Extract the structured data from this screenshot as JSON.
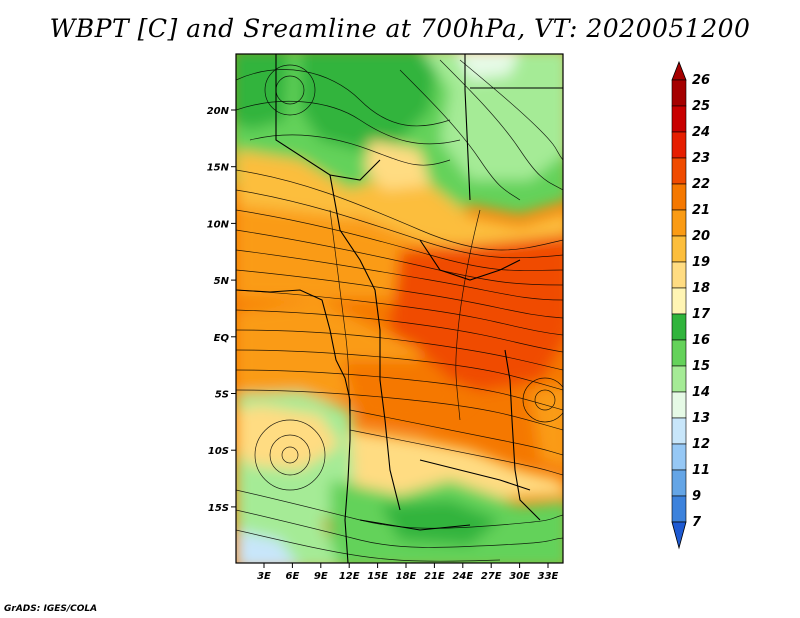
{
  "title": "WBPT [C] and Sreamline at 700hPa, VT: 2020051200",
  "credit": "GrADS: IGES/COLA",
  "x_ticks": [
    "3E",
    "6E",
    "9E",
    "12E",
    "15E",
    "18E",
    "21E",
    "24E",
    "27E",
    "30E",
    "33E"
  ],
  "y_ticks": [
    "20N",
    "15N",
    "10N",
    "5N",
    "EQ",
    "5S",
    "10S",
    "15S"
  ],
  "colorbar": {
    "labels": [
      "26",
      "25",
      "24",
      "23",
      "22",
      "21",
      "20",
      "19",
      "18",
      "17",
      "16",
      "15",
      "14",
      "13",
      "12",
      "11",
      "9",
      "7"
    ],
    "colors": [
      "#a50000",
      "#c80000",
      "#e61e00",
      "#f04b00",
      "#f57800",
      "#fa9b14",
      "#fcbe3c",
      "#ffdc82",
      "#fff5b4",
      "#30b43c",
      "#64d25a",
      "#a5eb96",
      "#e6fae6",
      "#c8e6fa",
      "#96c8f5",
      "#64a5e6",
      "#3c82dc",
      "#1e5ad2"
    ]
  },
  "field_colors": {
    "d_green": "#30b43c",
    "m_green": "#64d25a",
    "l_green": "#a5eb96",
    "pale": "#e6fae6",
    "l_blue": "#c8e6fa",
    "yellow": "#fcbe3c",
    "l_yellow": "#ffdc82",
    "orange": "#fa9b14",
    "d_orange": "#f57800",
    "red_orange": "#f04b00"
  }
}
